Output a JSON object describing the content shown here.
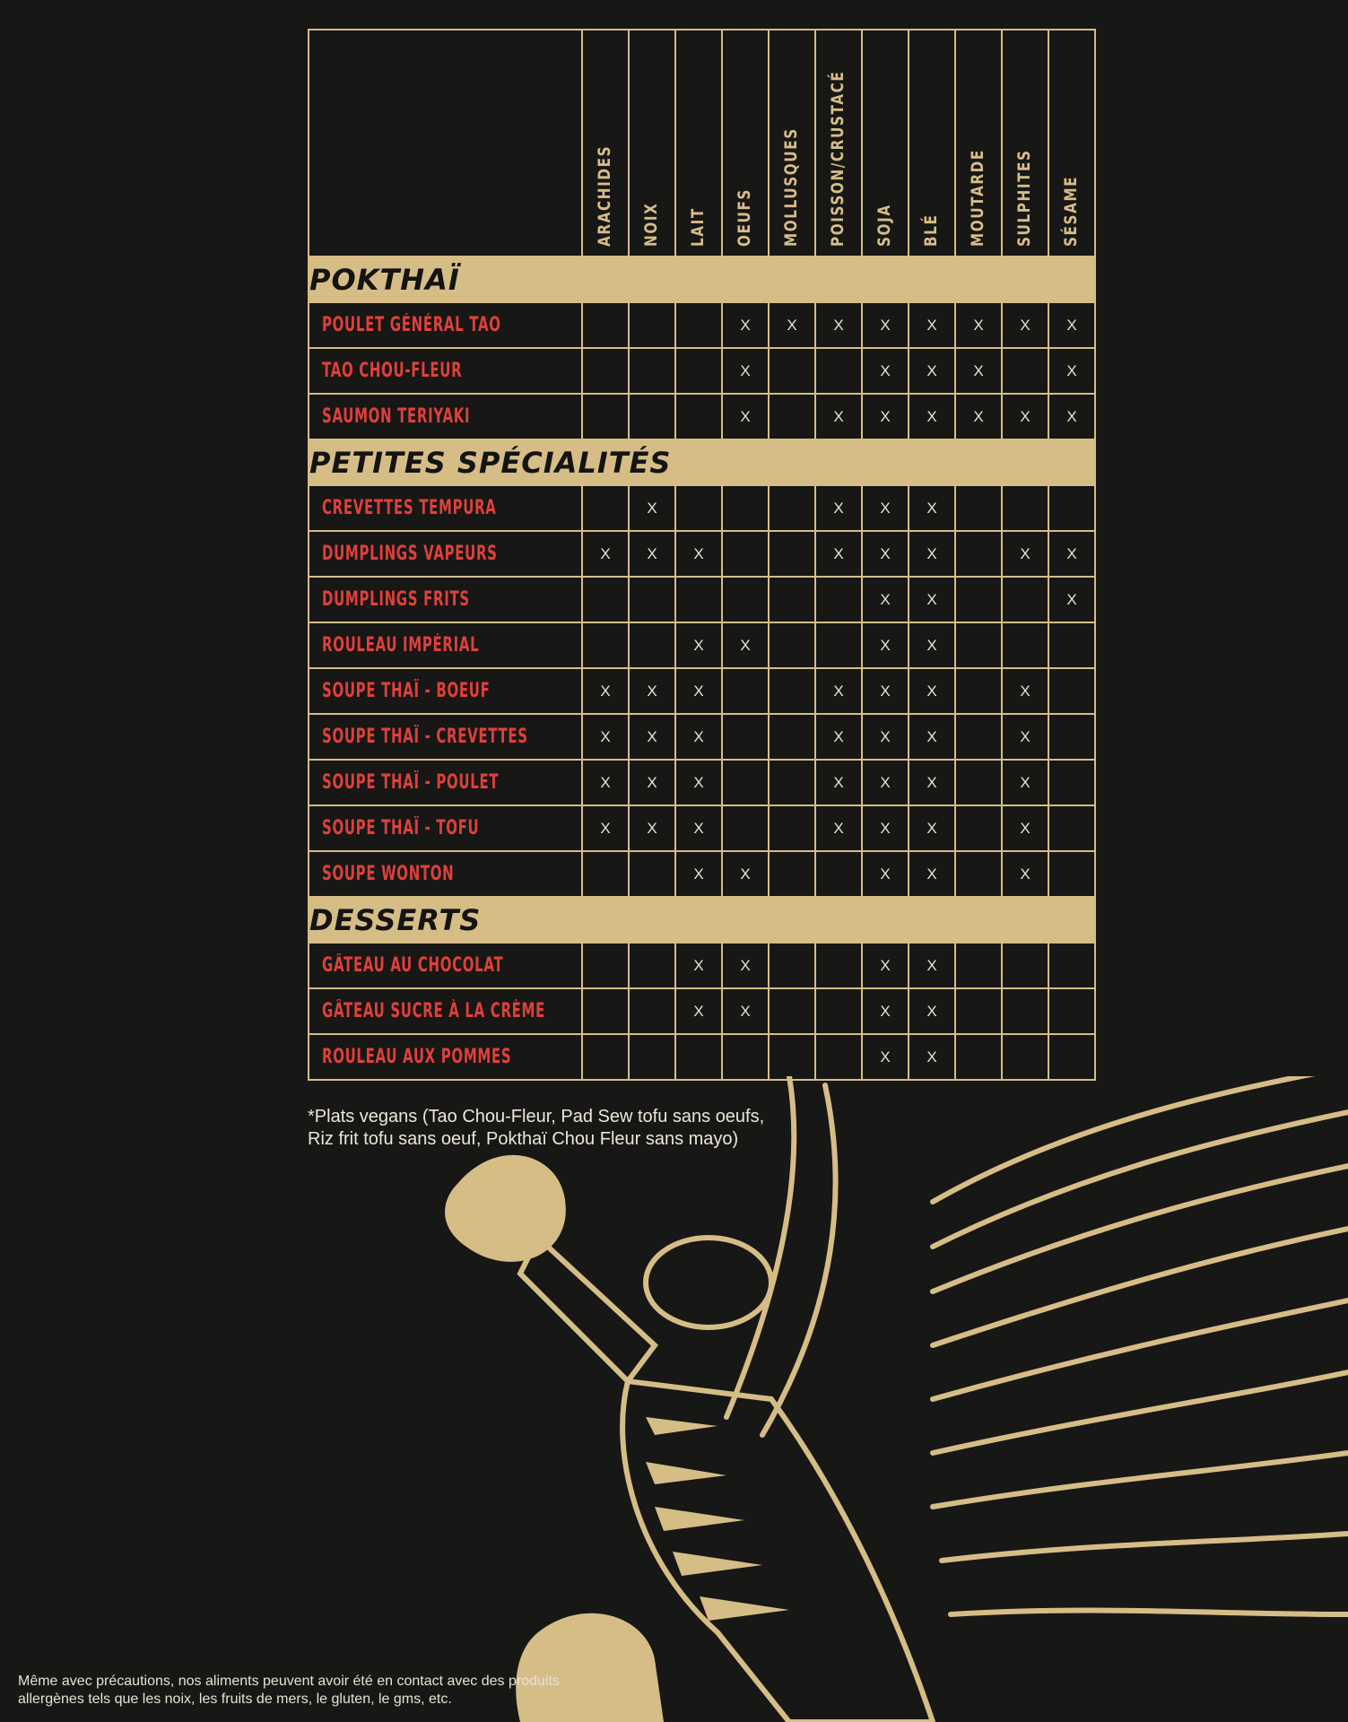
{
  "colors": {
    "background": "#171716",
    "accent": "#d6bd86",
    "item_text": "#e0403a",
    "mark": "#e8e2d2"
  },
  "allergens": [
    "ARACHIDES",
    "NOIX",
    "LAIT",
    "OEUFS",
    "MOLLUSQUES",
    "POISSON/CRUSTACÉ",
    "SOJA",
    "BLÉ",
    "MOUTARDE",
    "SULPHITES",
    "SÉSAME"
  ],
  "sections": [
    {
      "title": "POKTHAÏ",
      "items": [
        {
          "name": "POULET GÉNÉRAL TAO",
          "marks": [
            "",
            "",
            "",
            "X",
            "X",
            "X",
            "X",
            "X",
            "X",
            "X",
            "X"
          ]
        },
        {
          "name": "TAO CHOU-FLEUR",
          "marks": [
            "",
            "",
            "",
            "X",
            "",
            "",
            "X",
            "X",
            "X",
            "",
            "X"
          ]
        },
        {
          "name": "SAUMON TERIYAKI",
          "marks": [
            "",
            "",
            "",
            "X",
            "",
            "X",
            "X",
            "X",
            "X",
            "X",
            "X"
          ]
        }
      ]
    },
    {
      "title": "PETITES SPÉCIALITÉS",
      "items": [
        {
          "name": "CREVETTES TEMPURA",
          "marks": [
            "",
            "X",
            "",
            "",
            "",
            "X",
            "X",
            "X",
            "",
            "",
            ""
          ]
        },
        {
          "name": "DUMPLINGS VAPEURS",
          "marks": [
            "X",
            "X",
            "X",
            "",
            "",
            "X",
            "X",
            "X",
            "",
            "X",
            "X"
          ]
        },
        {
          "name": "DUMPLINGS FRITS",
          "marks": [
            "",
            "",
            "",
            "",
            "",
            "",
            "X",
            "X",
            "",
            "",
            "X"
          ]
        },
        {
          "name": "ROULEAU IMPÉRIAL",
          "marks": [
            "",
            "",
            "X",
            "X",
            "",
            "",
            "X",
            "X",
            "",
            "",
            ""
          ]
        },
        {
          "name": "SOUPE THAÏ - BOEUF",
          "marks": [
            "X",
            "X",
            "X",
            "",
            "",
            "X",
            "X",
            "X",
            "",
            "X",
            ""
          ]
        },
        {
          "name": "SOUPE THAÏ - CREVETTES",
          "marks": [
            "X",
            "X",
            "X",
            "",
            "",
            "X",
            "X",
            "X",
            "",
            "X",
            ""
          ]
        },
        {
          "name": "SOUPE THAÏ - POULET",
          "marks": [
            "X",
            "X",
            "X",
            "",
            "",
            "X",
            "X",
            "X",
            "",
            "X",
            ""
          ]
        },
        {
          "name": "SOUPE THAÏ - TOFU",
          "marks": [
            "X",
            "X",
            "X",
            "",
            "",
            "X",
            "X",
            "X",
            "",
            "X",
            ""
          ]
        },
        {
          "name": "SOUPE WONTON",
          "marks": [
            "",
            "",
            "X",
            "X",
            "",
            "",
            "X",
            "X",
            "",
            "X",
            ""
          ]
        }
      ]
    },
    {
      "title": "DESSERTS",
      "items": [
        {
          "name": "GÂTEAU AU CHOCOLAT",
          "marks": [
            "",
            "",
            "X",
            "X",
            "",
            "",
            "X",
            "X",
            "",
            "",
            ""
          ]
        },
        {
          "name": "GÂTEAU SUCRE À LA CRÈME",
          "marks": [
            "",
            "",
            "X",
            "X",
            "",
            "",
            "X",
            "X",
            "",
            "",
            ""
          ]
        },
        {
          "name": "ROULEAU AUX POMMES",
          "marks": [
            "",
            "",
            "",
            "",
            "",
            "",
            "X",
            "X",
            "",
            "",
            ""
          ]
        }
      ]
    }
  ],
  "footnote": [
    "*Plats vegans (Tao Chou-Fleur, Pad Sew tofu sans oeufs,",
    "Riz frit tofu sans oeuf, Pokthaï Chou Fleur sans mayo)"
  ],
  "disclaimer": [
    "Même avec précautions, nos aliments peuvent avoir été en contact avec des produits",
    "allergènes tels que les noix, les fruits de mers, le gluten, le gms, etc."
  ],
  "illustration": "winged-boxing-tiger"
}
